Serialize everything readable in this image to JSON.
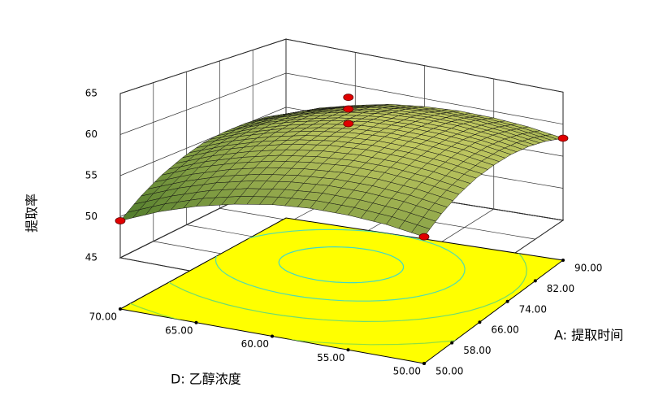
{
  "chart_data": {
    "type": "surface",
    "z_label": "提取率",
    "x_label": "A: 提取时间",
    "y_label": "D: 乙醇浓度",
    "xlim": [
      50,
      90
    ],
    "xticks": [
      {
        "value": 50,
        "label": "50.00"
      },
      {
        "value": 58,
        "label": "58.00"
      },
      {
        "value": 66,
        "label": "66.00"
      },
      {
        "value": 74,
        "label": "74.00"
      },
      {
        "value": 82,
        "label": "82.00"
      },
      {
        "value": 90,
        "label": "90.00"
      }
    ],
    "ylim": [
      50,
      70
    ],
    "yticks": [
      {
        "value": 50,
        "label": "50.00"
      },
      {
        "value": 55,
        "label": "55.00"
      },
      {
        "value": 60,
        "label": "60.00"
      },
      {
        "value": 65,
        "label": "65.00"
      },
      {
        "value": 70,
        "label": "70.00"
      }
    ],
    "zlim": [
      45,
      65
    ],
    "zticks": [
      45,
      50,
      55,
      60,
      65
    ],
    "grid": true,
    "floor_color": "#ffff00",
    "surface": {
      "x": [
        50,
        55,
        60,
        65,
        70,
        75,
        80,
        85,
        90
      ],
      "y": [
        50,
        52.5,
        55,
        57.5,
        60,
        62.5,
        65,
        67.5,
        70
      ],
      "z": [
        [
          55.0,
          56.7,
          58.0,
          58.9,
          59.4,
          59.6,
          59.4,
          58.8,
          57.8
        ],
        [
          55.6,
          57.3,
          58.6,
          59.5,
          60.1,
          60.3,
          60.1,
          59.5,
          58.6
        ],
        [
          55.8,
          57.5,
          58.9,
          59.8,
          60.4,
          60.6,
          60.5,
          60.0,
          59.0
        ],
        [
          55.7,
          57.4,
          58.8,
          59.8,
          60.4,
          60.6,
          60.5,
          60.0,
          59.1
        ],
        [
          55.2,
          56.9,
          58.3,
          59.4,
          60.0,
          60.3,
          60.2,
          59.7,
          58.8
        ],
        [
          54.3,
          56.1,
          57.5,
          58.6,
          59.2,
          59.5,
          59.5,
          59.0,
          58.2
        ],
        [
          53.1,
          54.9,
          56.3,
          57.4,
          58.1,
          58.4,
          58.4,
          57.9,
          57.1
        ],
        [
          51.5,
          53.3,
          54.8,
          55.9,
          56.6,
          57.0,
          56.9,
          56.5,
          55.8
        ],
        [
          49.5,
          51.4,
          52.9,
          54.0,
          54.8,
          55.1,
          55.1,
          54.8,
          54.0
        ]
      ],
      "colormap": [
        "#1f5a14",
        "#f0e878"
      ]
    },
    "points": {
      "x": [
        50,
        50,
        90,
        70,
        70,
        70
      ],
      "y": [
        70,
        50,
        50,
        60,
        60,
        60
      ],
      "z": [
        49.5,
        55.0,
        57.8,
        64.8,
        63.2,
        61.2
      ],
      "color": "#e00000"
    }
  }
}
